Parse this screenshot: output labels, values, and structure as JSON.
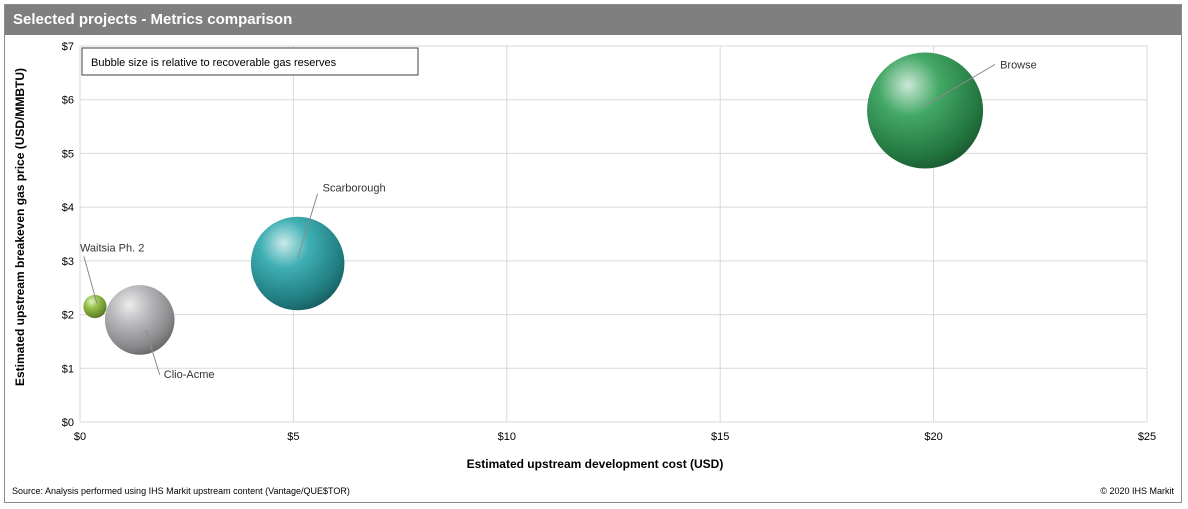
{
  "header": {
    "title": "Selected projects - Metrics comparison"
  },
  "note": "Bubble size is relative  to recoverable  gas reserves",
  "footer": {
    "source": "Source:  Analysis performed using IHS Markit upstream content (Vantage/QUE$TOR)",
    "copyright": "© 2020  IHS Markit"
  },
  "chart_data": {
    "type": "scatter",
    "title": "Selected projects - Metrics comparison",
    "xlabel": "Estimated upstream development cost (USD)",
    "ylabel": "Estimated upstream breakeven gas price (USD/MMBTU)",
    "xlim": [
      0,
      25
    ],
    "ylim": [
      0,
      7
    ],
    "x_ticks": [
      0,
      5,
      10,
      15,
      20,
      25
    ],
    "x_tick_labels": [
      "$0",
      "$5",
      "$10",
      "$15",
      "$20",
      "$25"
    ],
    "y_ticks": [
      0,
      1,
      2,
      3,
      4,
      5,
      6,
      7
    ],
    "y_tick_labels": [
      "$0",
      "$1",
      "$2",
      "$3",
      "$4",
      "$5",
      "$6",
      "$7"
    ],
    "grid": true,
    "bubble_size_meaning": "recoverable gas reserves (relative)",
    "points": [
      {
        "label": "Waitsia Ph. 2",
        "x": 0.35,
        "y": 2.15,
        "size": 0.04,
        "color": "#8fbf3a"
      },
      {
        "label": "Clio-Acme",
        "x": 1.4,
        "y": 1.9,
        "size": 0.36,
        "color": "#b4b4b8"
      },
      {
        "label": "Scarborough",
        "x": 5.1,
        "y": 2.95,
        "size": 0.65,
        "color": "#2aa6ab"
      },
      {
        "label": "Browse",
        "x": 19.8,
        "y": 5.8,
        "size": 1.0,
        "color": "#2e9e55"
      }
    ]
  }
}
